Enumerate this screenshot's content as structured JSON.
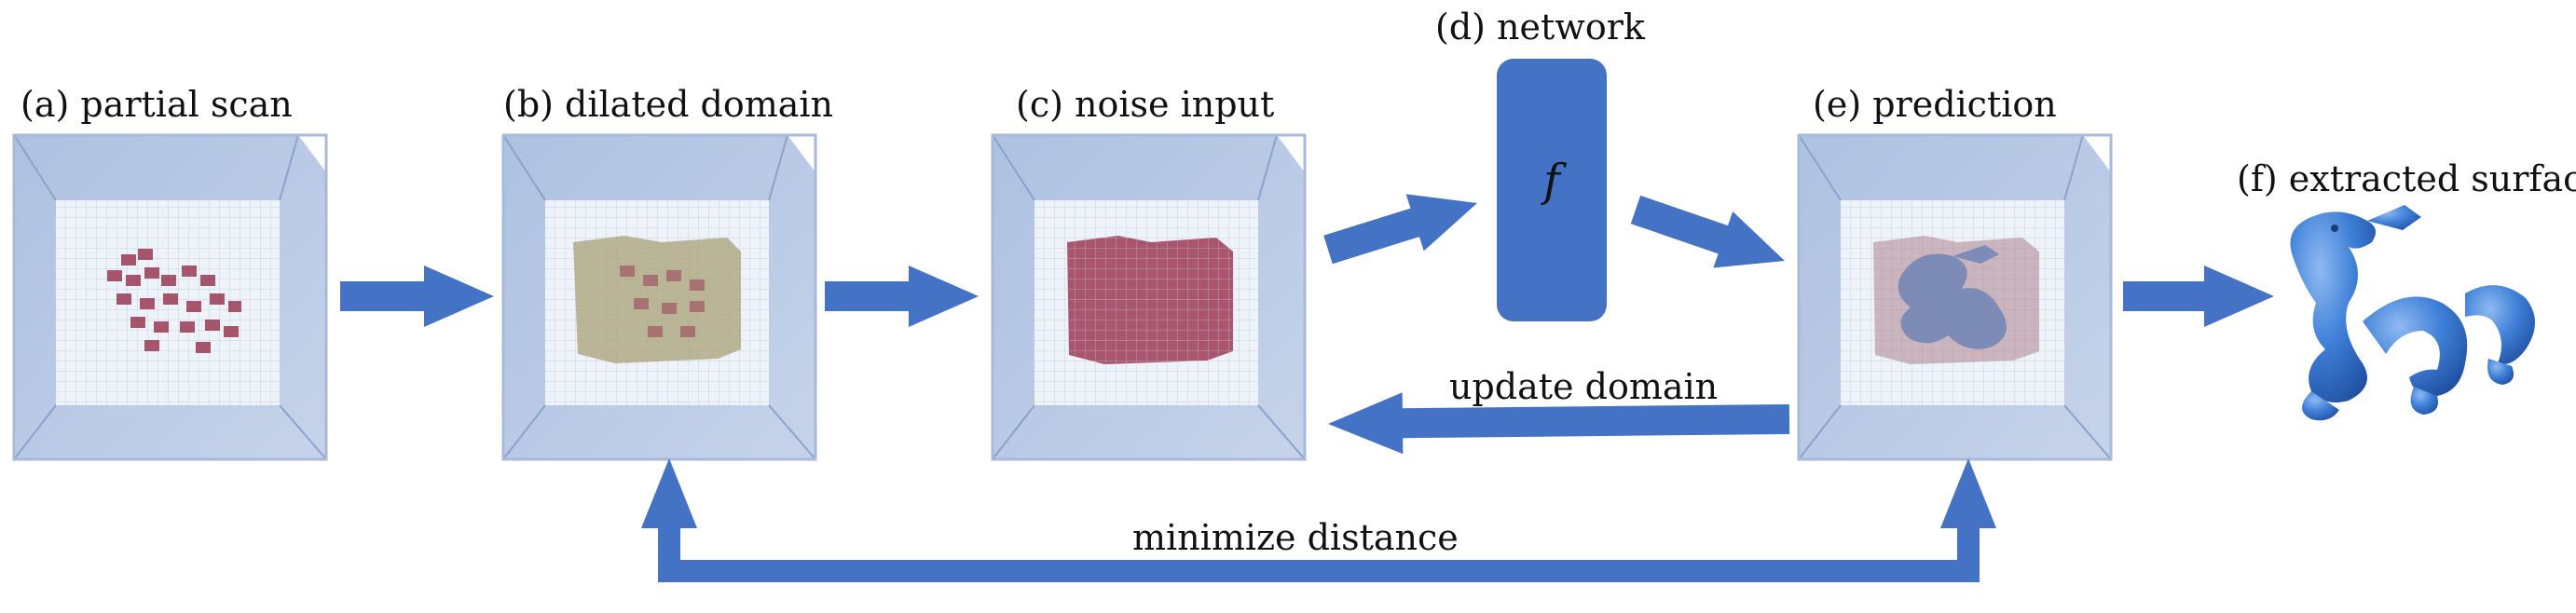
{
  "labels": {
    "a": "(a) partial scan",
    "b": "(b) dilated domain",
    "c": "(c) noise input",
    "d": "(d) network",
    "e": "(e) prediction",
    "f": "(f) extracted surface"
  },
  "network_symbol": "f",
  "arrows": {
    "update": "update domain",
    "minimize": "minimize distance"
  },
  "colors": {
    "arrow": "#4472c4",
    "network": "#4472c4",
    "cube": "#aabfde",
    "voxel_red": "#9b3a55",
    "voxel_olive": "#a7a074",
    "prediction_surface": "#6f86b5",
    "dragon": "#3f80d8"
  }
}
